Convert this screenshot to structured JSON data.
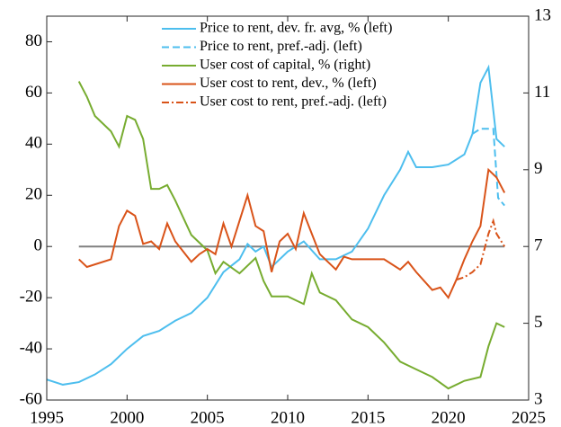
{
  "chart_data": {
    "type": "line",
    "xlim": [
      1995,
      2025
    ],
    "xticks": [
      1995,
      2000,
      2005,
      2010,
      2015,
      2020,
      2025
    ],
    "ylim": [
      -60,
      90
    ],
    "yticks": [
      -60,
      -40,
      -20,
      0,
      20,
      40,
      60,
      80
    ],
    "y2lim": [
      3,
      13
    ],
    "y2ticks": [
      3,
      5,
      7,
      9,
      11,
      13
    ],
    "reference_line": {
      "y": 0,
      "x": [
        1997,
        2023.5
      ],
      "color": "#808080"
    },
    "series": [
      {
        "name": "Price to rent, dev. fr. avg, % (left)",
        "color": "#4dbeee",
        "linestyle": "solid",
        "x": [
          1995,
          1996,
          1997,
          1998,
          1999,
          2000,
          2001,
          2002,
          2003,
          2004,
          2005,
          2006,
          2007,
          2007.5,
          2008,
          2008.5,
          2009,
          2010,
          2011,
          2012,
          2013,
          2014,
          2015,
          2016,
          2017,
          2017.5,
          2018,
          2019,
          2020,
          2021,
          2021.5,
          2022,
          2022.5,
          2023,
          2023.5
        ],
        "values": [
          -52,
          -54,
          -53,
          -50,
          -46,
          -40,
          -35,
          -33,
          -29,
          -26,
          -20,
          -10,
          -5,
          1,
          -2,
          0,
          -8,
          -2,
          2,
          -5,
          -5,
          -2,
          7,
          20,
          30,
          37,
          31,
          31,
          32,
          36,
          44,
          64,
          70,
          42,
          39
        ]
      },
      {
        "name": "Price to rent, pref.-adj. (left)",
        "color": "#4dbeee",
        "linestyle": "dashed",
        "x": [
          2021.5,
          2022,
          2022.8,
          2023.1,
          2023.5
        ],
        "values": [
          44,
          46,
          46,
          19,
          16
        ]
      },
      {
        "name": "User cost of capital, % (right)",
        "color": "#77ac30",
        "linestyle": "solid",
        "axis": "y2",
        "x": [
          1997,
          1997.5,
          1998,
          1999,
          1999.5,
          2000,
          2000.5,
          2001,
          2001.5,
          2002,
          2002.5,
          2003,
          2004,
          2005,
          2005.5,
          2006,
          2007,
          2008,
          2008.5,
          2009,
          2010,
          2011,
          2011.5,
          2012,
          2013,
          2014,
          2015,
          2016,
          2017,
          2018,
          2019,
          2020,
          2021,
          2022,
          2022.5,
          2023,
          2023.5
        ],
        "values": [
          11.3,
          10.9,
          10.4,
          10,
          9.6,
          10.4,
          10.3,
          9.8,
          8.5,
          8.5,
          8.6,
          8.2,
          7.3,
          6.9,
          6.3,
          6.6,
          6.3,
          6.7,
          6.1,
          5.7,
          5.7,
          5.5,
          6.3,
          5.8,
          5.6,
          5.1,
          4.9,
          4.5,
          4.0,
          3.8,
          3.6,
          3.3,
          3.5,
          3.6,
          4.4,
          5.0,
          4.9
        ]
      },
      {
        "name": "User cost to rent, dev., % (left)",
        "color": "#d95319",
        "linestyle": "solid",
        "x": [
          1997,
          1997.5,
          1998,
          1999,
          1999.5,
          2000,
          2000.5,
          2001,
          2001.5,
          2002,
          2002.5,
          2003,
          2004,
          2004.5,
          2005,
          2005.5,
          2006,
          2006.5,
          2007,
          2007.5,
          2008,
          2008.5,
          2009,
          2009.5,
          2010,
          2010.5,
          2011,
          2011.5,
          2012,
          2013,
          2013.5,
          2014,
          2015,
          2016,
          2017,
          2017.5,
          2018,
          2019,
          2019.5,
          2020,
          2020.5,
          2021,
          2021.5,
          2022,
          2022.5,
          2023,
          2023.5
        ],
        "values": [
          -5,
          -8,
          -7,
          -5,
          8,
          14,
          12,
          1,
          2,
          -1,
          9,
          2,
          -6,
          -3,
          -1,
          -3,
          9,
          0,
          10,
          20,
          8,
          6,
          -10,
          2,
          5,
          -1,
          13,
          5,
          -3,
          -9,
          -4,
          -5,
          -5,
          -5,
          -9,
          -6,
          -10,
          -17,
          -16,
          -20,
          -13,
          -5,
          2,
          8,
          30,
          27,
          21
        ]
      },
      {
        "name": "User cost to rent, pref.-adj. (left)",
        "color": "#d95319",
        "linestyle": "dashdot",
        "x": [
          2020.5,
          2021,
          2021.5,
          2022,
          2022.5,
          2022.8,
          2023,
          2023.5
        ],
        "values": [
          -13,
          -12,
          -10,
          -7,
          5,
          10,
          5,
          0
        ]
      }
    ]
  }
}
